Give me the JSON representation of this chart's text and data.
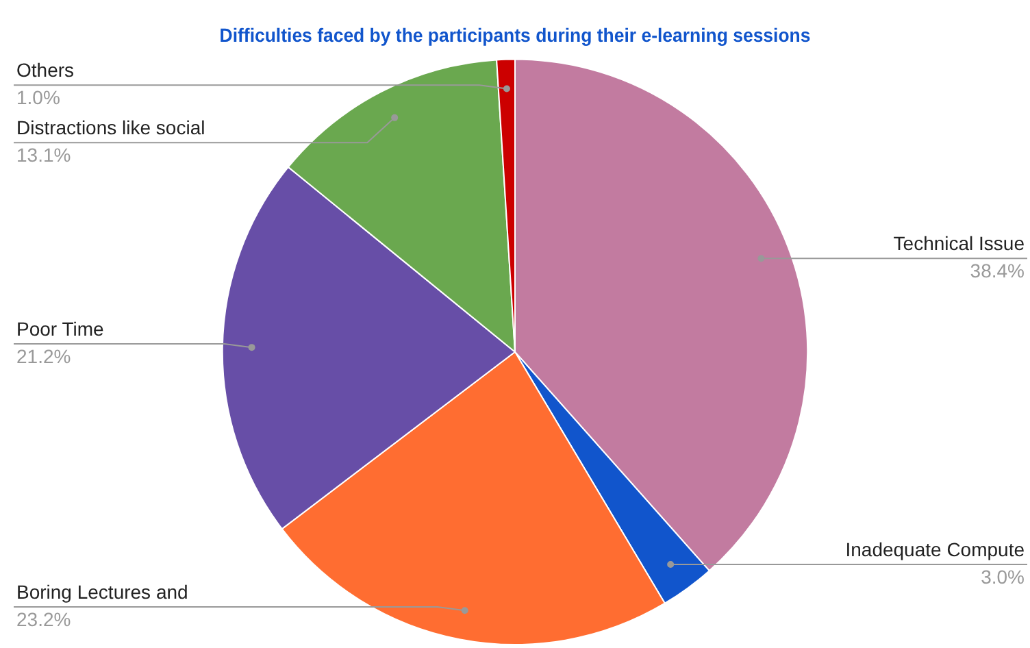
{
  "chart_data": {
    "type": "pie",
    "title": "Difficulties faced by the participants during their e-learning sessions",
    "categories": [
      "Technical Issue",
      "Inadequate Compute",
      "Boring Lectures and",
      "Poor Time",
      "Distractions like social",
      "Others"
    ],
    "values": [
      38.4,
      3.0,
      23.2,
      21.2,
      13.1,
      1.0
    ],
    "value_labels": [
      "38.4%",
      "3.0%",
      "23.2%",
      "21.2%",
      "13.1%",
      "1.0%"
    ],
    "colors": [
      "#c27ba0",
      "#1155cc",
      "#ff6d31",
      "#674ea7",
      "#6aa84f",
      "#cc0000"
    ],
    "legend": false
  }
}
